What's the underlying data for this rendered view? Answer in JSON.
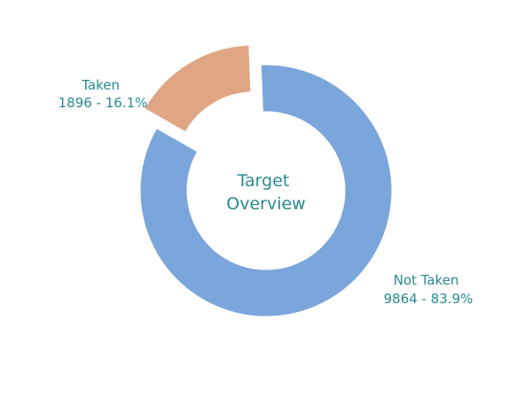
{
  "chart_data": {
    "type": "pie",
    "variant": "donut",
    "title_lines": [
      "Target",
      "Overview"
    ],
    "slices": [
      {
        "label": "Not Taken",
        "value": 9864,
        "percent": 83.9,
        "color": "#7ba6dc",
        "pulled": false,
        "detail": "9864 - 83.9%"
      },
      {
        "label": "Taken",
        "value": 1896,
        "percent": 16.1,
        "color": "#e0a683",
        "pulled": true,
        "detail": "1896 - 16.1%"
      }
    ],
    "legend": "none"
  }
}
